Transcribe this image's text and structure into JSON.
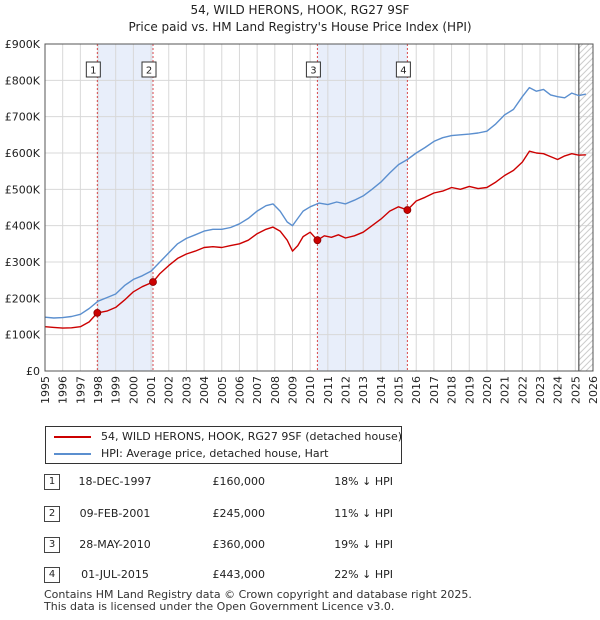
{
  "chart_data": {
    "type": "line",
    "title": "54, WILD HERONS, HOOK, RG27 9SF",
    "subtitle": "Price paid vs. HM Land Registry's House Price Index (HPI)",
    "xlabel": "",
    "ylabel": "",
    "xlim": [
      1995,
      2026
    ],
    "ylim": [
      0,
      900000
    ],
    "y_ticks": [
      {
        "value": 0,
        "label": "£0"
      },
      {
        "value": 100000,
        "label": "£100K"
      },
      {
        "value": 200000,
        "label": "£200K"
      },
      {
        "value": 300000,
        "label": "£300K"
      },
      {
        "value": 400000,
        "label": "£400K"
      },
      {
        "value": 500000,
        "label": "£500K"
      },
      {
        "value": 600000,
        "label": "£600K"
      },
      {
        "value": 700000,
        "label": "£700K"
      },
      {
        "value": 800000,
        "label": "£800K"
      },
      {
        "value": 900000,
        "label": "£900K"
      }
    ],
    "x_ticks": [
      "1995",
      "1996",
      "1997",
      "1998",
      "1999",
      "2000",
      "2001",
      "2002",
      "2003",
      "2004",
      "2005",
      "2006",
      "2007",
      "2008",
      "2009",
      "2010",
      "2011",
      "2012",
      "2013",
      "2014",
      "2015",
      "2016",
      "2017",
      "2018",
      "2019",
      "2020",
      "2021",
      "2022",
      "2023",
      "2024",
      "2025",
      "2026"
    ],
    "grid": true,
    "shaded_ranges": [
      [
        1997.96,
        2001.11
      ],
      [
        2010.41,
        2015.5
      ]
    ],
    "future_start": 2025.2,
    "colors": {
      "property": "#cc0000",
      "hpi": "#5b8fcf",
      "shade": "#e8eefa",
      "sale_line": "#cc0000"
    },
    "series": [
      {
        "name": "54, WILD HERONS, HOOK, RG27 9SF (detached house)",
        "x": [
          1995.0,
          1995.5,
          1996.0,
          1996.5,
          1997.0,
          1997.5,
          1997.96,
          1998.5,
          1999.0,
          1999.5,
          2000.0,
          2000.5,
          2001.11,
          2001.5,
          2002.0,
          2002.5,
          2003.0,
          2003.5,
          2004.0,
          2004.5,
          2005.0,
          2005.5,
          2006.0,
          2006.5,
          2007.0,
          2007.5,
          2007.9,
          2008.3,
          2008.7,
          2009.0,
          2009.3,
          2009.6,
          2010.0,
          2010.41,
          2010.8,
          2011.2,
          2011.6,
          2012.0,
          2012.5,
          2013.0,
          2013.5,
          2014.0,
          2014.5,
          2015.0,
          2015.5,
          2016.0,
          2016.5,
          2017.0,
          2017.5,
          2018.0,
          2018.5,
          2019.0,
          2019.5,
          2020.0,
          2020.5,
          2021.0,
          2021.5,
          2022.0,
          2022.4,
          2022.8,
          2023.2,
          2023.6,
          2024.0,
          2024.4,
          2024.8,
          2025.2,
          2025.6
        ],
        "values": [
          122000,
          120000,
          118000,
          119000,
          122000,
          135000,
          160000,
          165000,
          175000,
          195000,
          218000,
          232000,
          245000,
          268000,
          290000,
          310000,
          322000,
          330000,
          340000,
          342000,
          340000,
          345000,
          350000,
          360000,
          378000,
          390000,
          396000,
          385000,
          360000,
          330000,
          345000,
          370000,
          382000,
          360000,
          372000,
          368000,
          375000,
          366000,
          372000,
          382000,
          400000,
          418000,
          440000,
          452000,
          443000,
          468000,
          478000,
          490000,
          495000,
          505000,
          500000,
          508000,
          502000,
          505000,
          520000,
          538000,
          552000,
          575000,
          605000,
          600000,
          598000,
          590000,
          582000,
          592000,
          598000,
          594000,
          595000
        ]
      },
      {
        "name": "HPI: Average price, detached house, Hart",
        "x": [
          1995.0,
          1995.5,
          1996.0,
          1996.5,
          1997.0,
          1997.5,
          1998.0,
          1998.5,
          1999.0,
          1999.5,
          2000.0,
          2000.5,
          2001.0,
          2001.5,
          2002.0,
          2002.5,
          2003.0,
          2003.5,
          2004.0,
          2004.5,
          2005.0,
          2005.5,
          2006.0,
          2006.5,
          2007.0,
          2007.5,
          2007.9,
          2008.3,
          2008.7,
          2009.0,
          2009.3,
          2009.6,
          2010.0,
          2010.5,
          2011.0,
          2011.5,
          2012.0,
          2012.5,
          2013.0,
          2013.5,
          2014.0,
          2014.5,
          2015.0,
          2015.5,
          2016.0,
          2016.5,
          2017.0,
          2017.5,
          2018.0,
          2018.5,
          2019.0,
          2019.5,
          2020.0,
          2020.5,
          2021.0,
          2021.5,
          2022.0,
          2022.4,
          2022.8,
          2023.2,
          2023.6,
          2024.0,
          2024.4,
          2024.8,
          2025.2,
          2025.6
        ],
        "values": [
          148000,
          146000,
          147000,
          150000,
          156000,
          172000,
          192000,
          202000,
          212000,
          235000,
          252000,
          262000,
          275000,
          300000,
          325000,
          350000,
          365000,
          375000,
          385000,
          390000,
          390000,
          395000,
          405000,
          420000,
          440000,
          455000,
          460000,
          440000,
          410000,
          400000,
          420000,
          440000,
          452000,
          462000,
          458000,
          465000,
          460000,
          470000,
          482000,
          500000,
          520000,
          545000,
          568000,
          582000,
          600000,
          615000,
          632000,
          642000,
          648000,
          650000,
          652000,
          655000,
          660000,
          680000,
          705000,
          720000,
          755000,
          780000,
          770000,
          775000,
          760000,
          755000,
          752000,
          765000,
          758000,
          762000
        ]
      }
    ],
    "sales": [
      {
        "num": "1",
        "x": 1997.96,
        "value": 160000
      },
      {
        "num": "2",
        "x": 2001.11,
        "value": 245000
      },
      {
        "num": "3",
        "x": 2010.41,
        "value": 360000
      },
      {
        "num": "4",
        "x": 2015.5,
        "value": 443000
      }
    ]
  },
  "legend": {
    "property_label": "54, WILD HERONS, HOOK, RG27 9SF (detached house)",
    "hpi_label": "HPI: Average price, detached house, Hart"
  },
  "sales_table": [
    {
      "num": "1",
      "date": "18-DEC-1997",
      "price": "£160,000",
      "delta": "18% ↓ HPI"
    },
    {
      "num": "2",
      "date": "09-FEB-2001",
      "price": "£245,000",
      "delta": "11% ↓ HPI"
    },
    {
      "num": "3",
      "date": "28-MAY-2010",
      "price": "£360,000",
      "delta": "19% ↓ HPI"
    },
    {
      "num": "4",
      "date": "01-JUL-2015",
      "price": "£443,000",
      "delta": "22% ↓ HPI"
    }
  ],
  "footer": {
    "line1": "Contains HM Land Registry data © Crown copyright and database right 2025.",
    "line2": "This data is licensed under the Open Government Licence v3.0."
  }
}
